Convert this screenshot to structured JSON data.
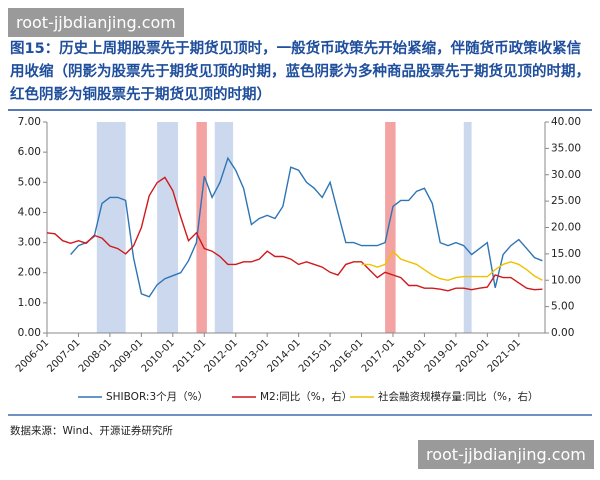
{
  "watermarks": [
    "root-jjbdianjing.com",
    "root-jjbdianjing.com"
  ],
  "chart_data": {
    "type": "line",
    "title": "图15：历史上周期股票先于期货见顶时，一般货币政策先开始紧缩，伴随货币政策收紧信用收缩（阴影为股票先于期货见顶的时期，蓝色阴影为多种商品股票先于期货见顶的时期，红色阴影为铜股票先于期货见顶的时期）",
    "source": "数据来源：Wind、开源证券研究所",
    "x": [
      "2006-01",
      "2006-04",
      "2006-07",
      "2006-10",
      "2007-01",
      "2007-04",
      "2007-07",
      "2007-10",
      "2008-01",
      "2008-04",
      "2008-07",
      "2008-10",
      "2009-01",
      "2009-04",
      "2009-07",
      "2009-10",
      "2010-01",
      "2010-04",
      "2010-07",
      "2010-10",
      "2011-01",
      "2011-04",
      "2011-07",
      "2011-10",
      "2012-01",
      "2012-04",
      "2012-07",
      "2012-10",
      "2013-01",
      "2013-04",
      "2013-07",
      "2013-10",
      "2014-01",
      "2014-04",
      "2014-07",
      "2014-10",
      "2015-01",
      "2015-04",
      "2015-07",
      "2015-10",
      "2016-01",
      "2016-04",
      "2016-07",
      "2016-10",
      "2017-01",
      "2017-04",
      "2017-07",
      "2017-10",
      "2018-01",
      "2018-04",
      "2018-07",
      "2018-10",
      "2019-01",
      "2019-04",
      "2019-07",
      "2019-10",
      "2020-01",
      "2020-04",
      "2020-07",
      "2020-10",
      "2021-01",
      "2021-04",
      "2021-07",
      "2021-10"
    ],
    "xlim": [
      "2006-01",
      "2021-11"
    ],
    "xticks": [
      "2006-01",
      "2007-01",
      "2008-01",
      "2009-01",
      "2010-01",
      "2011-01",
      "2012-01",
      "2013-01",
      "2014-01",
      "2015-01",
      "2016-01",
      "2017-01",
      "2018-01",
      "2019-01",
      "2020-01",
      "2021-01"
    ],
    "ylim": [
      0,
      7
    ],
    "yticks": [
      {
        "value": 0,
        "label": "0.00"
      },
      {
        "value": 1,
        "label": "1.00"
      },
      {
        "value": 2,
        "label": "2.00"
      },
      {
        "value": 3,
        "label": "3.00"
      },
      {
        "value": 4,
        "label": "4.00"
      },
      {
        "value": 5,
        "label": "5.00"
      },
      {
        "value": 6,
        "label": "6.00"
      },
      {
        "value": 7,
        "label": "7.00"
      }
    ],
    "y2lim": [
      0,
      40
    ],
    "y2ticks": [
      {
        "value": 0,
        "label": "0.00"
      },
      {
        "value": 5,
        "label": "5.00"
      },
      {
        "value": 10,
        "label": "10.00"
      },
      {
        "value": 15,
        "label": "15.00"
      },
      {
        "value": 20,
        "label": "20.00"
      },
      {
        "value": 25,
        "label": "25.00"
      },
      {
        "value": 30,
        "label": "30.00"
      },
      {
        "value": 35,
        "label": "35.00"
      },
      {
        "value": 40,
        "label": "40.00"
      }
    ],
    "shaded_regions": [
      {
        "start": "2007-08",
        "end": "2008-07",
        "color": "#cbd8ee"
      },
      {
        "start": "2009-07",
        "end": "2010-03",
        "color": "#cbd8ee"
      },
      {
        "start": "2010-10",
        "end": "2011-02",
        "color": "#f4a3a3"
      },
      {
        "start": "2011-05",
        "end": "2011-12",
        "color": "#cbd8ee"
      },
      {
        "start": "2016-10",
        "end": "2017-02",
        "color": "#f4a3a3"
      },
      {
        "start": "2019-04",
        "end": "2019-07",
        "color": "#cbd8ee"
      }
    ],
    "series": [
      {
        "name": "SHIBOR:3个月（%）",
        "color": "#2e75b6",
        "values": [
          null,
          null,
          null,
          2.6,
          2.9,
          3.0,
          3.2,
          4.3,
          4.5,
          4.5,
          4.4,
          2.5,
          1.3,
          1.2,
          1.6,
          1.8,
          1.9,
          2.0,
          2.4,
          3.0,
          5.2,
          4.5,
          5.0,
          5.8,
          5.4,
          4.8,
          3.6,
          3.8,
          3.9,
          3.8,
          4.2,
          5.5,
          5.4,
          5.0,
          4.8,
          4.5,
          5.0,
          4.0,
          3.0,
          3.0,
          2.9,
          2.9,
          2.9,
          3.0,
          4.2,
          4.4,
          4.4,
          4.7,
          4.8,
          4.3,
          3.0,
          2.9,
          3.0,
          2.9,
          2.6,
          2.8,
          3.0,
          1.5,
          2.6,
          2.9,
          3.1,
          2.8,
          2.5,
          2.4
        ]
      },
      {
        "name": "M2:同比（%，右）",
        "color": "#d0191b",
        "axis": "y2",
        "values": [
          19.0,
          18.8,
          17.5,
          17.0,
          17.5,
          17.0,
          18.5,
          18.0,
          16.5,
          16.0,
          15.0,
          16.5,
          20.0,
          26.0,
          28.5,
          29.5,
          27.0,
          22.0,
          17.5,
          19.0,
          16.0,
          15.5,
          14.5,
          13.0,
          13.0,
          13.5,
          13.5,
          14.0,
          15.5,
          14.5,
          14.5,
          14.0,
          13.0,
          13.5,
          13.0,
          12.5,
          11.5,
          11.0,
          13.0,
          13.5,
          13.5,
          12.0,
          10.5,
          11.5,
          11.0,
          10.5,
          9.0,
          9.0,
          8.5,
          8.5,
          8.3,
          8.0,
          8.5,
          8.5,
          8.2,
          8.5,
          8.7,
          11.0,
          10.5,
          10.5,
          9.5,
          8.5,
          8.2,
          8.3
        ]
      },
      {
        "name": "社会融资规模存量:同比（%，右）",
        "color": "#f0c000",
        "axis": "y2",
        "values": [
          null,
          null,
          null,
          null,
          null,
          null,
          null,
          null,
          null,
          null,
          null,
          null,
          null,
          null,
          null,
          null,
          null,
          null,
          null,
          null,
          null,
          null,
          null,
          null,
          null,
          null,
          null,
          null,
          null,
          null,
          null,
          null,
          null,
          null,
          null,
          null,
          null,
          null,
          null,
          null,
          13.0,
          13.0,
          12.5,
          13.0,
          15.5,
          14.0,
          13.5,
          13.0,
          12.0,
          11.0,
          10.3,
          10.0,
          10.5,
          10.7,
          10.7,
          10.7,
          10.7,
          12.0,
          13.0,
          13.5,
          13.0,
          12.0,
          10.8,
          10.0
        ]
      }
    ]
  }
}
